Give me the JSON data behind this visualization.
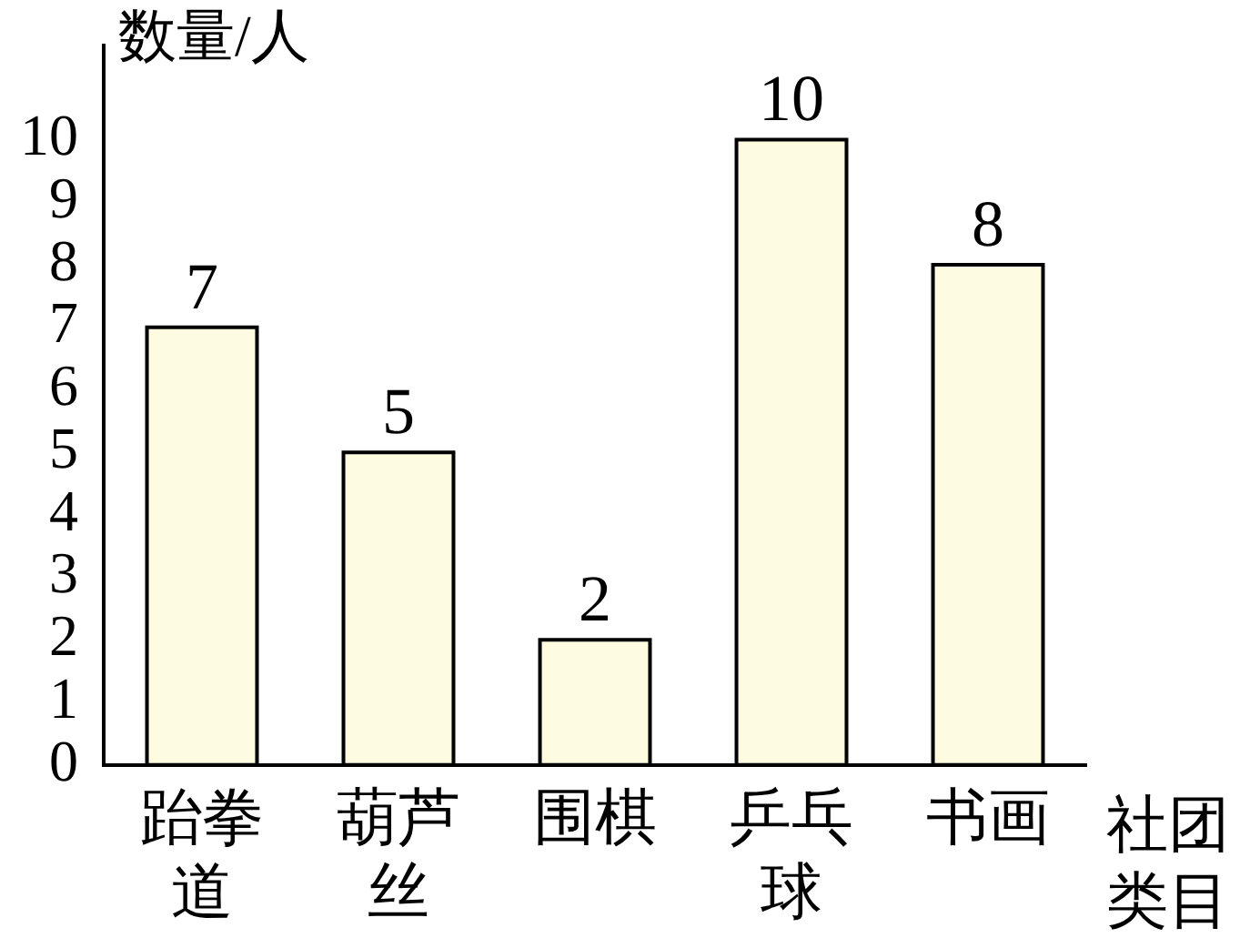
{
  "chart_data": {
    "type": "bar",
    "ylabel": "数量/人",
    "xlabel": "社团类目",
    "categories": [
      "跆拳道",
      "葫芦丝",
      "围棋",
      "乒乓球",
      "书画"
    ],
    "values": [
      7,
      5,
      2,
      10,
      8
    ],
    "color": "#fdfbe0",
    "ylim": [
      0,
      11.5
    ],
    "yticks": [
      0,
      1,
      2,
      3,
      4,
      5,
      6,
      7,
      8,
      9,
      10
    ],
    "grid": false,
    "legend": false,
    "data_labels": true
  }
}
